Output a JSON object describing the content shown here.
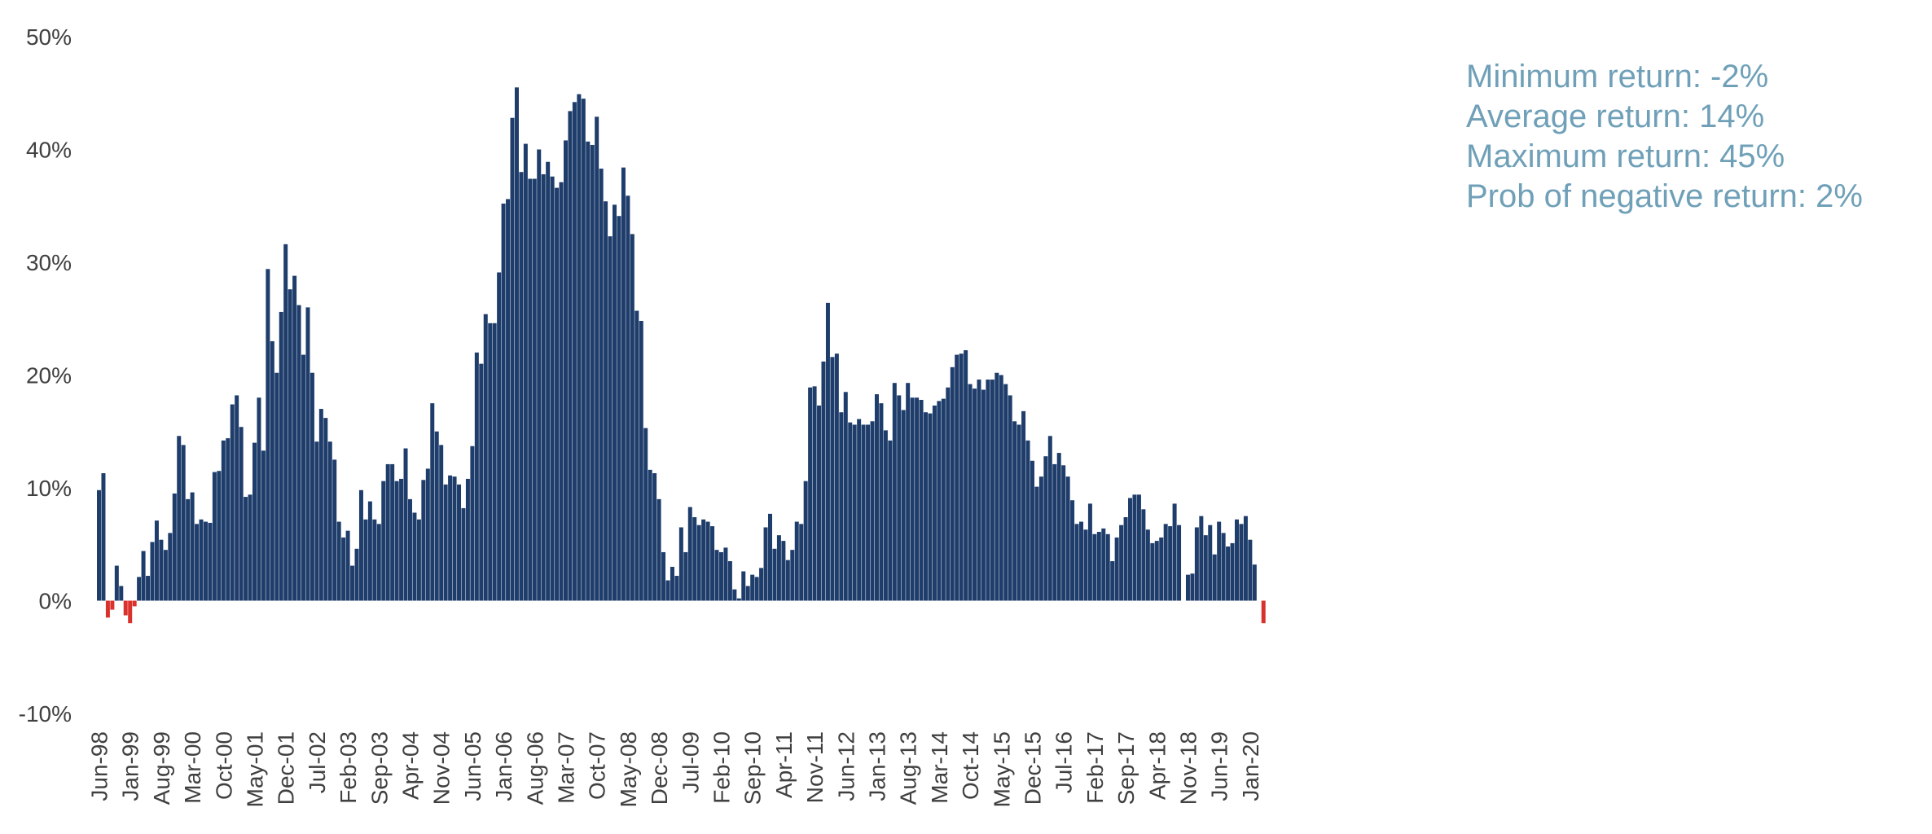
{
  "chart_data": {
    "type": "bar",
    "ylim": [
      -10,
      50
    ],
    "yticks": [
      "50%",
      "40%",
      "30%",
      "20%",
      "10%",
      "0%",
      "-10%"
    ],
    "ytick_values": [
      50,
      40,
      30,
      20,
      10,
      0,
      -10
    ],
    "xtick_labels": [
      "Jun-98",
      "Jan-99",
      "Aug-99",
      "Mar-00",
      "Oct-00",
      "May-01",
      "Dec-01",
      "Jul-02",
      "Feb-03",
      "Sep-03",
      "Apr-04",
      "Nov-04",
      "Jun-05",
      "Jan-06",
      "Aug-06",
      "Mar-07",
      "Oct-07",
      "May-08",
      "Dec-08",
      "Jul-09",
      "Feb-10",
      "Sep-10",
      "Apr-11",
      "Nov-11",
      "Jun-12",
      "Jan-13",
      "Aug-13",
      "Mar-14",
      "Oct-14",
      "May-15",
      "Dec-15",
      "Jul-16",
      "Feb-17",
      "Sep-17",
      "Apr-18",
      "Nov-18",
      "Jun-19",
      "Jan-20"
    ],
    "start_month": "Jun-98",
    "positive_color": "#1f3d6b",
    "negative_color": "#d9312b",
    "values": [
      9.8,
      11.3,
      -1.5,
      -0.8,
      3.1,
      1.3,
      -1.3,
      -2.0,
      -0.5,
      2.1,
      4.4,
      2.2,
      5.2,
      7.1,
      5.4,
      4.5,
      6.0,
      9.5,
      14.6,
      13.8,
      9.0,
      9.6,
      6.8,
      7.2,
      7.0,
      6.9,
      11.4,
      11.5,
      14.2,
      14.4,
      17.4,
      18.2,
      15.4,
      9.2,
      9.4,
      14.0,
      18.0,
      13.3,
      29.4,
      23.0,
      20.2,
      25.6,
      31.6,
      27.6,
      28.8,
      26.2,
      21.8,
      26.0,
      20.2,
      14.1,
      17.0,
      16.2,
      14.1,
      12.5,
      7.0,
      5.6,
      6.2,
      3.1,
      4.6,
      9.8,
      7.2,
      8.8,
      7.2,
      6.8,
      10.6,
      12.1,
      12.1,
      10.6,
      10.8,
      13.5,
      9.0,
      7.8,
      7.2,
      10.7,
      11.7,
      17.5,
      15.0,
      13.8,
      10.3,
      11.1,
      11.0,
      10.3,
      8.2,
      10.8,
      13.7,
      22.0,
      21.0,
      25.4,
      24.6,
      24.6,
      29.1,
      35.2,
      35.6,
      42.8,
      45.5,
      38.0,
      40.5,
      37.4,
      37.4,
      40.0,
      37.8,
      38.9,
      37.6,
      36.6,
      37.1,
      40.8,
      43.4,
      44.2,
      44.9,
      44.5,
      40.7,
      40.4,
      42.9,
      38.3,
      35.4,
      32.3,
      35.1,
      34.1,
      38.4,
      35.9,
      32.5,
      25.7,
      24.8,
      15.3,
      11.6,
      11.3,
      9.0,
      4.3,
      1.8,
      3.0,
      2.2,
      6.5,
      4.3,
      8.3,
      7.4,
      6.7,
      7.2,
      7.0,
      6.6,
      4.5,
      4.3,
      4.7,
      3.5,
      1.0,
      0.2,
      2.6,
      1.3,
      2.3,
      2.1,
      2.9,
      6.5,
      7.7,
      4.6,
      5.8,
      5.3,
      3.6,
      4.5,
      7.0,
      6.8,
      10.6,
      18.9,
      19.0,
      17.3,
      21.2,
      26.4,
      21.6,
      21.9,
      16.7,
      18.5,
      15.8,
      15.6,
      16.1,
      15.6,
      15.6,
      15.9,
      18.3,
      17.5,
      15.1,
      14.2,
      19.3,
      18.2,
      16.9,
      19.3,
      18.0,
      18.0,
      17.8,
      16.7,
      16.6,
      17.3,
      17.7,
      17.9,
      18.9,
      20.7,
      21.8,
      21.9,
      22.2,
      19.2,
      18.8,
      19.6,
      18.7,
      19.6,
      19.6,
      20.2,
      20.0,
      19.2,
      18.2,
      15.9,
      15.6,
      16.8,
      14.2,
      12.4,
      10.1,
      11.0,
      12.8,
      14.6,
      12.1,
      13.1,
      12.0,
      11.0,
      8.9,
      6.8,
      7.0,
      6.3,
      8.6,
      5.9,
      6.1,
      6.4,
      5.9,
      3.5,
      5.6,
      6.7,
      7.4,
      9.1,
      9.4,
      9.4,
      8.1,
      6.3,
      5.1,
      5.3,
      5.6,
      6.8,
      6.6,
      8.6,
      6.7,
      0.0,
      2.3,
      2.4,
      6.5,
      7.5,
      5.8,
      6.7,
      4.1,
      7.0,
      6.0,
      4.8,
      5.1,
      7.2,
      6.8,
      7.5,
      5.4,
      3.2,
      0.0,
      -2.0
    ]
  },
  "stats": {
    "min": "Minimum return:  -2%",
    "avg": "Average return:  14%",
    "max": "Maximum return:  45%",
    "neg": "Prob of negative return:  2%"
  }
}
